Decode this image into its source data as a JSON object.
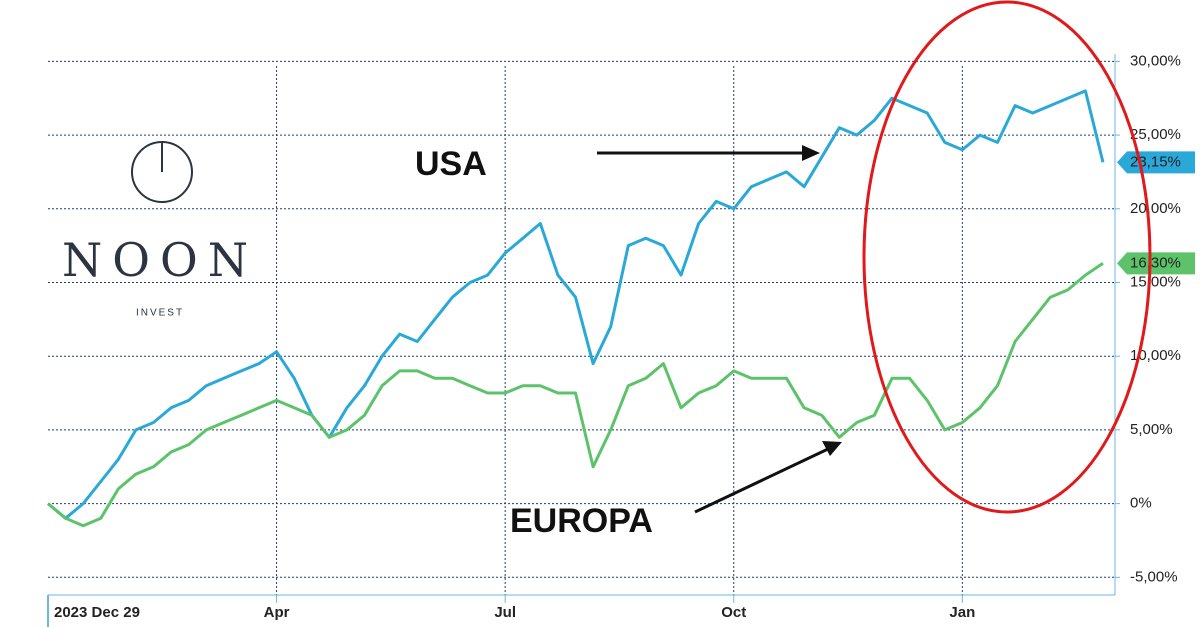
{
  "logo": {
    "name": "NOON",
    "tagline": "INVEST"
  },
  "chart_data": {
    "type": "line",
    "annotations": [
      "USA",
      "EUROPA"
    ],
    "categories": [
      "2023 Dec 29",
      null,
      null,
      null,
      null,
      null,
      null,
      null,
      null,
      null,
      null,
      null,
      null,
      "Apr",
      null,
      null,
      null,
      null,
      null,
      null,
      null,
      null,
      null,
      null,
      null,
      null,
      "Jul",
      null,
      null,
      null,
      null,
      null,
      null,
      null,
      null,
      null,
      null,
      null,
      null,
      "Oct",
      null,
      null,
      null,
      null,
      null,
      null,
      null,
      null,
      null,
      null,
      null,
      null,
      "Jan",
      null,
      null,
      null,
      null,
      null,
      null,
      null,
      null
    ],
    "series": [
      {
        "name": "USA",
        "color": "#2aa8d8",
        "values": [
          0,
          -1,
          0,
          1.5,
          3,
          5,
          5.5,
          6.5,
          7,
          8,
          8.5,
          9,
          9.5,
          10.3,
          8.5,
          6,
          4.5,
          6.5,
          8,
          10,
          11.5,
          11,
          12.5,
          14,
          15,
          15.5,
          17,
          18,
          19,
          15.5,
          14,
          9.5,
          12,
          17.5,
          18,
          17.5,
          15.5,
          19,
          20.5,
          20,
          21.5,
          22,
          22.5,
          21.5,
          23.5,
          25.5,
          25,
          26,
          27.5,
          27,
          26.5,
          24.5,
          24,
          25,
          24.5,
          27,
          26.5,
          27,
          27.5,
          28,
          23.15
        ],
        "value_labels": [
          null,
          null,
          null,
          null,
          null,
          null,
          null,
          null,
          null,
          null,
          null,
          null,
          null,
          null,
          null,
          null,
          null,
          null,
          null,
          null,
          null,
          null,
          null,
          null,
          null,
          null,
          null,
          null,
          null,
          null,
          null,
          null,
          null,
          null,
          null,
          null,
          null,
          null,
          null,
          null,
          null,
          null,
          null,
          null,
          null,
          null,
          null,
          null,
          null,
          null,
          null,
          null,
          null,
          null,
          null,
          null,
          null,
          null,
          null,
          null,
          "23,15%"
        ]
      },
      {
        "name": "EUROPA",
        "color": "#5cc36a",
        "values": [
          0,
          -1,
          -1.5,
          -1,
          1,
          2,
          2.5,
          3.5,
          4,
          5,
          5.5,
          6,
          6.5,
          7,
          6.5,
          6,
          4.5,
          5,
          6,
          8,
          9,
          9,
          8.5,
          8.5,
          8,
          7.5,
          7.5,
          8,
          8,
          7.5,
          7.5,
          2.5,
          5,
          8,
          8.5,
          9.5,
          6.5,
          7.5,
          8,
          9,
          8.5,
          8.5,
          8.5,
          6.5,
          6,
          4.5,
          5.5,
          6,
          8.5,
          8.5,
          7,
          5,
          5.5,
          6.5,
          8,
          11,
          12.5,
          14,
          14.5,
          15.5,
          16.3
        ],
        "value_labels": [
          null,
          null,
          null,
          null,
          null,
          null,
          null,
          null,
          null,
          null,
          null,
          null,
          null,
          null,
          null,
          null,
          null,
          null,
          null,
          null,
          null,
          null,
          null,
          null,
          null,
          null,
          null,
          null,
          null,
          null,
          null,
          null,
          null,
          null,
          null,
          null,
          null,
          null,
          null,
          null,
          null,
          null,
          null,
          null,
          null,
          null,
          null,
          null,
          null,
          null,
          null,
          null,
          null,
          null,
          null,
          null,
          null,
          null,
          null,
          null,
          "16,30%"
        ]
      }
    ],
    "ylim": [
      -6.2,
      30.5
    ],
    "yticks": [
      {
        "value": -5,
        "label": "-5,00%"
      },
      {
        "value": 0,
        "label": "0%"
      },
      {
        "value": 5,
        "label": "5,00%"
      },
      {
        "value": 10,
        "label": "10,00%"
      },
      {
        "value": 15,
        "label": "15,00%"
      },
      {
        "value": 20,
        "label": "20,00%"
      },
      {
        "value": 25,
        "label": "25,00%"
      },
      {
        "value": 30,
        "label": "30,00%"
      }
    ],
    "grid": true
  }
}
